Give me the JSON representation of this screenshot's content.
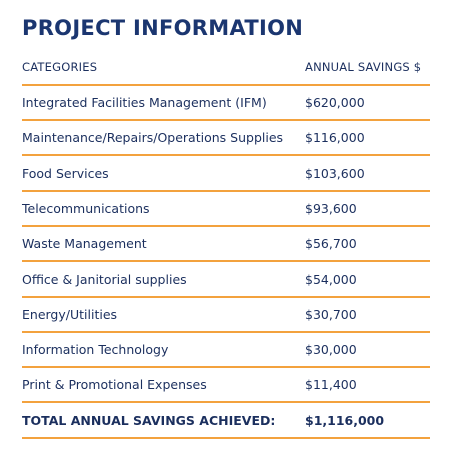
{
  "header": {
    "title": "PROJECT INFORMATION"
  },
  "table": {
    "columns": [
      "CATEGORIES",
      "ANNUAL SAVINGS $"
    ],
    "rows": [
      [
        "Integrated Facilities Management (IFM)",
        "$620,000"
      ],
      [
        "Maintenance/Repairs/Operations Supplies",
        "$116,000"
      ],
      [
        "Food Services",
        "$103,600"
      ],
      [
        "Telecommunications",
        "$93,600"
      ],
      [
        "Waste Management",
        "$56,700"
      ],
      [
        "Office & Janitorial supplies",
        "$54,000"
      ],
      [
        "Energy/Utilities",
        "$30,700"
      ],
      [
        "Information Technology",
        "$30,000"
      ],
      [
        "Print & Promotional Expenses",
        "$11,400"
      ]
    ],
    "total": [
      "TOTAL ANNUAL SAVINGS ACHIEVED:",
      "$1,116,000"
    ]
  }
}
